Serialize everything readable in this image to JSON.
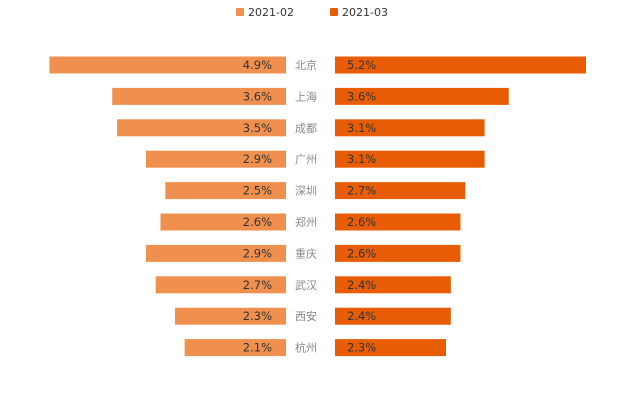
{
  "chart_data": {
    "type": "bar",
    "orientation": "horizontal-butterfly",
    "categories": [
      "北京",
      "上海",
      "成都",
      "广州",
      "深圳",
      "郑州",
      "重庆",
      "武汉",
      "西安",
      "杭州"
    ],
    "series": [
      {
        "name": "2021-02",
        "color": "#f0904f",
        "values": [
          4.9,
          3.6,
          3.5,
          2.9,
          2.5,
          2.6,
          2.9,
          2.7,
          2.3,
          2.1
        ],
        "labels": [
          "4.9%",
          "3.6%",
          "3.5%",
          "2.9%",
          "2.5%",
          "2.6%",
          "2.9%",
          "2.7%",
          "2.3%",
          "2.1%"
        ]
      },
      {
        "name": "2021-03",
        "color": "#e85d04",
        "values": [
          5.2,
          3.6,
          3.1,
          3.1,
          2.7,
          2.6,
          2.6,
          2.4,
          2.4,
          2.3
        ],
        "labels": [
          "5.2%",
          "3.6%",
          "3.1%",
          "3.1%",
          "2.7%",
          "2.6%",
          "2.6%",
          "2.4%",
          "2.4%",
          "2.3%"
        ]
      }
    ],
    "legend_position": "top-center",
    "grid": false,
    "unit": "%"
  }
}
